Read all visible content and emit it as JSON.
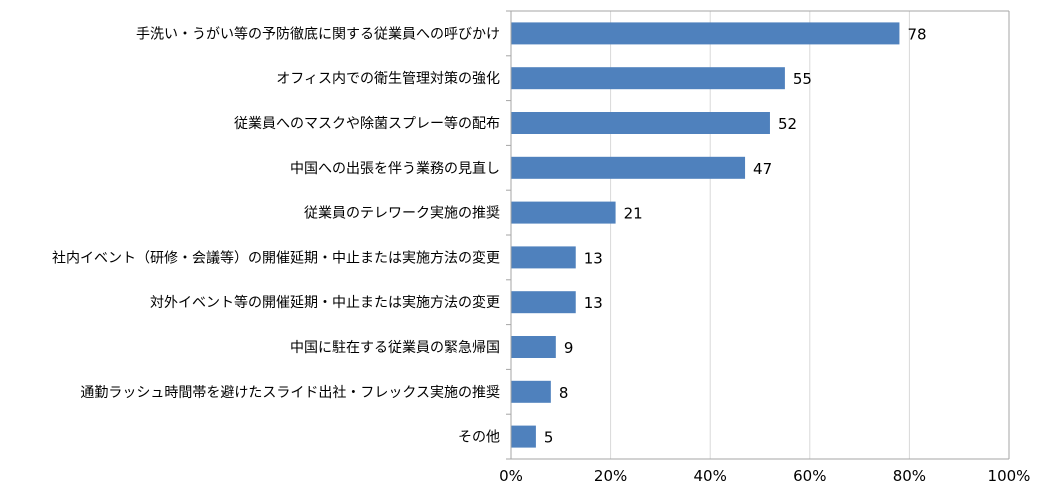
{
  "chart_data": {
    "type": "bar",
    "orientation": "horizontal",
    "title": "",
    "xlabel": "",
    "ylabel": "",
    "categories": [
      "手洗い・うがい等の予防徹底に関する従業員への呼びかけ",
      "オフィス内での衛生管理対策の強化",
      "従業員へのマスクや除菌スプレー等の配布",
      "中国への出張を伴う業務の見直し",
      "従業員のテレワーク実施の推奨",
      "社内イベント（研修・会議等）の開催延期・中止または実施方法の変更",
      "対外イベント等の開催延期・中止または実施方法の変更",
      "中国に駐在する従業員の緊急帰国",
      "通勤ラッシュ時間帯を避けたスライド出社・フレックス実施の推奨",
      "その他"
    ],
    "values": [
      78,
      55,
      52,
      47,
      21,
      13,
      13,
      9,
      8,
      5
    ],
    "value_labels": [
      "78",
      "55",
      "52",
      "47",
      "21",
      "13",
      "13",
      "9",
      "8",
      "5"
    ],
    "xlim": [
      0,
      100
    ],
    "x_ticks": [
      0,
      20,
      40,
      60,
      80,
      100
    ],
    "x_tick_labels": [
      "0%",
      "20%",
      "40%",
      "60%",
      "80%",
      "100%"
    ],
    "grid": "vertical",
    "bar_color": "#4f81bd",
    "grid_color": "#d9d9d9",
    "axis_color": "#a6a6a6"
  }
}
